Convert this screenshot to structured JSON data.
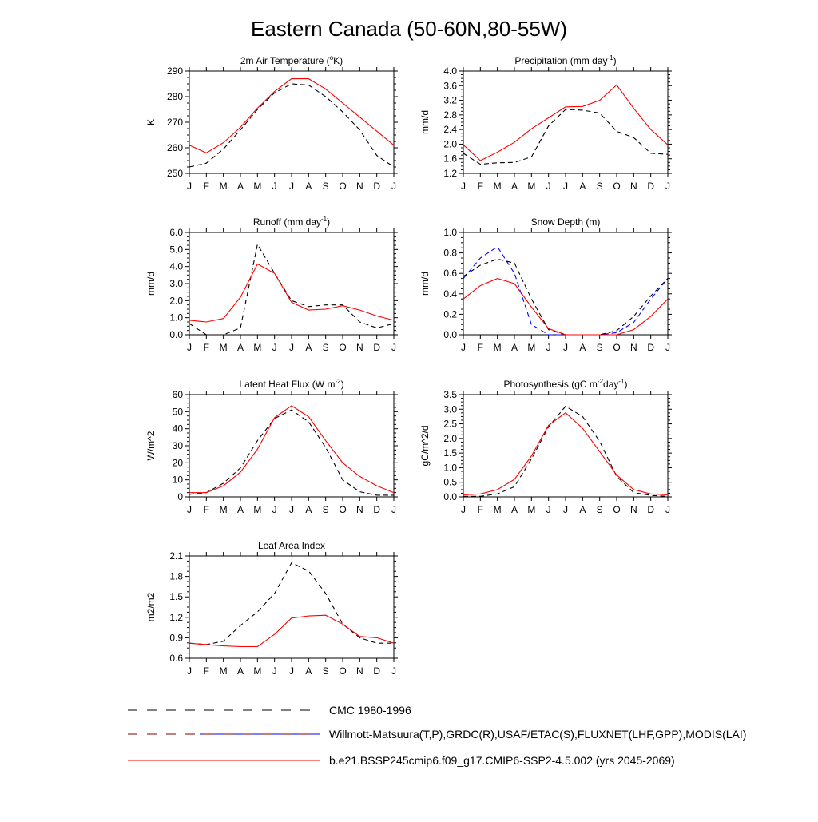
{
  "title": "Eastern Canada (50-60N,80-55W)",
  "months": [
    "J",
    "F",
    "M",
    "A",
    "M",
    "J",
    "J",
    "A",
    "S",
    "O",
    "N",
    "D",
    "J"
  ],
  "colors": {
    "model": "#ff0000",
    "obs": "#000000",
    "cmc": "#0000ff",
    "axis": "#000000"
  },
  "legend": {
    "cmc": "CMC 1980-1996",
    "obs": "Willmott-Matsuura(T,P),GRDC(R),USAF/ETAC(S),FLUXNET(LHF,GPP),MODIS(LAI)",
    "model": "b.e21.BSSP245cmip6.f09_g17.CMIP6-SSP2-4.5.002 (yrs 2045-2069)"
  },
  "chart_data": [
    {
      "id": "tsa",
      "type": "line",
      "title": "2m Air Temperature (",
      "title_sup": "o",
      "title_after": "K)",
      "ylabel": "K",
      "ylim": [
        250,
        290
      ],
      "yticks": [
        "250",
        "260",
        "270",
        "280",
        "290"
      ],
      "x": [
        "J",
        "F",
        "M",
        "A",
        "M",
        "J",
        "J",
        "A",
        "S",
        "O",
        "N",
        "D",
        "J"
      ],
      "series": [
        {
          "role": "obs",
          "values": [
            252.5,
            254,
            259.5,
            267,
            275,
            281.5,
            285,
            284.5,
            280,
            274,
            267,
            257,
            252.5
          ]
        },
        {
          "role": "model",
          "values": [
            261,
            258,
            262,
            268,
            275.5,
            282,
            287,
            287,
            283,
            277.5,
            272,
            266.5,
            261
          ]
        }
      ]
    },
    {
      "id": "pre",
      "type": "line",
      "title": "Precipitation (mm day",
      "title_sup": "-1",
      "title_after": ")",
      "ylabel": "mm/d",
      "ylim": [
        1.2,
        4.0
      ],
      "yticks": [
        "1.2",
        "1.6",
        "2.0",
        "2.4",
        "2.8",
        "3.2",
        "3.6",
        "4.0"
      ],
      "x": [
        "J",
        "F",
        "M",
        "A",
        "M",
        "J",
        "J",
        "A",
        "S",
        "O",
        "N",
        "D",
        "J"
      ],
      "series": [
        {
          "role": "obs",
          "values": [
            1.75,
            1.45,
            1.49,
            1.5,
            1.65,
            2.5,
            2.95,
            2.93,
            2.85,
            2.35,
            2.18,
            1.75,
            1.72
          ]
        },
        {
          "role": "model",
          "values": [
            1.98,
            1.55,
            1.78,
            2.05,
            2.42,
            2.72,
            3.02,
            3.03,
            3.2,
            3.62,
            2.98,
            2.4,
            1.98
          ]
        }
      ]
    },
    {
      "id": "runoff",
      "type": "line",
      "title": "Runoff (mm day",
      "title_sup": "-1",
      "title_after": ")",
      "ylabel": "mm/d",
      "ylim": [
        0,
        6.0
      ],
      "yticks": [
        "0.0",
        "1.0",
        "2.0",
        "3.0",
        "4.0",
        "5.0",
        "6.0"
      ],
      "x": [
        "J",
        "F",
        "M",
        "A",
        "M",
        "J",
        "J",
        "A",
        "S",
        "O",
        "N",
        "D",
        "J"
      ],
      "series": [
        {
          "role": "obs",
          "values": [
            0.65,
            0.0,
            0.0,
            0.4,
            5.3,
            3.6,
            2.0,
            1.65,
            1.75,
            1.75,
            0.75,
            0.4,
            0.65
          ]
        },
        {
          "role": "model",
          "values": [
            0.85,
            0.75,
            0.95,
            2.2,
            4.15,
            3.6,
            1.9,
            1.45,
            1.5,
            1.7,
            1.45,
            1.1,
            0.85
          ]
        }
      ]
    },
    {
      "id": "snowdp",
      "type": "line",
      "title": "Snow Depth (m)",
      "title_sup": "",
      "title_after": "",
      "ylabel": "mm/d",
      "ylim": [
        0,
        1.0
      ],
      "yticks": [
        "0.0",
        "0.2",
        "0.4",
        "0.6",
        "0.8",
        "1.0"
      ],
      "x": [
        "J",
        "F",
        "M",
        "A",
        "M",
        "J",
        "J",
        "A",
        "S",
        "O",
        "N",
        "D",
        "J"
      ],
      "series": [
        {
          "role": "cmc",
          "values": [
            0.55,
            0.75,
            0.86,
            0.6,
            0.1,
            0.0,
            0.0,
            0.0,
            0.0,
            0.02,
            0.12,
            0.35,
            0.55
          ]
        },
        {
          "role": "obs",
          "values": [
            0.57,
            0.68,
            0.74,
            0.7,
            0.35,
            0.05,
            0.0,
            0.0,
            0.0,
            0.04,
            0.18,
            0.38,
            0.55
          ]
        },
        {
          "role": "model",
          "values": [
            0.35,
            0.48,
            0.55,
            0.5,
            0.27,
            0.06,
            0.0,
            0.0,
            0.0,
            0.0,
            0.05,
            0.18,
            0.35
          ]
        }
      ]
    },
    {
      "id": "lhf",
      "type": "line",
      "title": "Latent Heat Flux (W m",
      "title_sup": "-2",
      "title_after": ")",
      "ylabel": "W/m^2",
      "ylim": [
        0,
        60
      ],
      "yticks": [
        "0",
        "10",
        "20",
        "30",
        "40",
        "50",
        "60"
      ],
      "x": [
        "J",
        "F",
        "M",
        "A",
        "M",
        "J",
        "J",
        "A",
        "S",
        "O",
        "N",
        "D",
        "J"
      ],
      "series": [
        {
          "role": "obs",
          "values": [
            1.5,
            2.5,
            8,
            17,
            33,
            46,
            51,
            44,
            29,
            10,
            3,
            1,
            1
          ]
        },
        {
          "role": "model",
          "values": [
            2.5,
            2.5,
            6.5,
            14.5,
            28,
            46.5,
            53.5,
            47,
            33,
            20,
            12,
            6.5,
            2.5
          ]
        }
      ]
    },
    {
      "id": "gpp",
      "type": "line",
      "title": "Photosynthesis (gC m",
      "title_sup": "-2",
      "title_after": "day",
      "title_sup2": "-1",
      "title_end": ")",
      "ylabel": "gC/m^2/d",
      "ylim": [
        0,
        3.5
      ],
      "yticks": [
        "0.0",
        "0.5",
        "1.0",
        "1.5",
        "2.0",
        "2.5",
        "3.0",
        "3.5"
      ],
      "x": [
        "J",
        "F",
        "M",
        "A",
        "M",
        "J",
        "J",
        "A",
        "S",
        "O",
        "N",
        "D",
        "J"
      ],
      "series": [
        {
          "role": "obs",
          "values": [
            0.02,
            0.02,
            0.1,
            0.35,
            1.3,
            2.4,
            3.1,
            2.75,
            1.9,
            0.7,
            0.15,
            0.05,
            0.02
          ]
        },
        {
          "role": "model",
          "values": [
            0.07,
            0.1,
            0.25,
            0.6,
            1.4,
            2.45,
            2.88,
            2.35,
            1.55,
            0.75,
            0.25,
            0.1,
            0.07
          ]
        }
      ]
    },
    {
      "id": "lai",
      "type": "line",
      "title": "Leaf Area Index",
      "title_sup": "",
      "title_after": "",
      "ylabel": "m2/m2",
      "ylim": [
        0.6,
        2.1
      ],
      "yticks": [
        "0.6",
        "0.9",
        "1.2",
        "1.5",
        "1.8",
        "2.1"
      ],
      "x": [
        "J",
        "F",
        "M",
        "A",
        "M",
        "J",
        "J",
        "A",
        "S",
        "O",
        "N",
        "D",
        "J"
      ],
      "series": [
        {
          "role": "obs",
          "values": [
            0.82,
            0.8,
            0.85,
            1.08,
            1.28,
            1.55,
            2.0,
            1.88,
            1.55,
            1.1,
            0.9,
            0.82,
            0.82
          ]
        },
        {
          "role": "model",
          "values": [
            0.82,
            0.8,
            0.78,
            0.77,
            0.77,
            0.95,
            1.19,
            1.22,
            1.23,
            1.1,
            0.92,
            0.9,
            0.82
          ]
        }
      ]
    }
  ]
}
